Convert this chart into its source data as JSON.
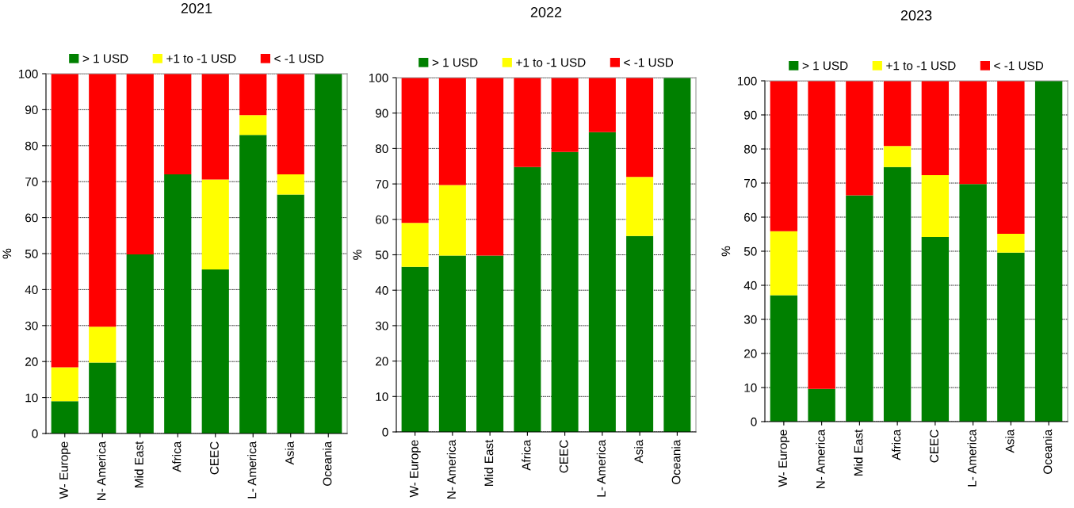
{
  "chart_data": [
    {
      "type": "bar",
      "title": "2021",
      "ylabel": "%",
      "stacked": true,
      "categories": [
        "W- Europe",
        "N- America",
        "Mid East",
        "Africa",
        "CEEC",
        "L- America",
        "Asia",
        "Oceania"
      ],
      "series": [
        {
          "name": "> 1 USD",
          "color": "#008000",
          "values": [
            9,
            19.7,
            49.8,
            72,
            45.6,
            83,
            66.4,
            100
          ]
        },
        {
          "name": "+1 to -1 USD",
          "color": "#ffff00",
          "values": [
            9.4,
            10,
            0,
            0,
            25,
            5.5,
            5.6,
            0
          ]
        },
        {
          "name": "< -1 USD",
          "color": "#ff0000",
          "values": [
            81.6,
            70.3,
            50.2,
            28,
            29.4,
            11.5,
            28,
            0
          ]
        }
      ],
      "ylim": [
        0,
        100
      ],
      "yticks": [
        0,
        10,
        20,
        30,
        40,
        50,
        60,
        70,
        80,
        90,
        100
      ],
      "grid": "y",
      "legend": "top"
    },
    {
      "type": "bar",
      "title": "2022",
      "ylabel": "%",
      "stacked": true,
      "categories": [
        "W- Europe",
        "N- America",
        "Mid East",
        "Africa",
        "CEEC",
        "L- America",
        "Asia",
        "Oceania"
      ],
      "series": [
        {
          "name": "> 1 USD",
          "color": "#008000",
          "values": [
            46.6,
            49.8,
            49.8,
            74.8,
            79,
            84.6,
            55.3,
            100
          ]
        },
        {
          "name": "+1 to -1 USD",
          "color": "#ffff00",
          "values": [
            12.4,
            19.9,
            0,
            0,
            0,
            0,
            16.7,
            0
          ]
        },
        {
          "name": "< -1 USD",
          "color": "#ff0000",
          "values": [
            41,
            30.3,
            50.2,
            25.2,
            21,
            15.4,
            28,
            0
          ]
        }
      ],
      "ylim": [
        0,
        100
      ],
      "yticks": [
        0,
        10,
        20,
        30,
        40,
        50,
        60,
        70,
        80,
        90,
        100
      ],
      "grid": "y",
      "legend": "top"
    },
    {
      "type": "bar",
      "title": "2023",
      "ylabel": "%",
      "stacked": true,
      "categories": [
        "W- Europe",
        "N- America",
        "Mid East",
        "Africa",
        "CEEC",
        "L- America",
        "Asia",
        "Oceania"
      ],
      "series": [
        {
          "name": "> 1 USD",
          "color": "#008000",
          "values": [
            37.1,
            9.6,
            66.4,
            74.7,
            54.2,
            69.7,
            49.6,
            100
          ]
        },
        {
          "name": "+1 to -1 USD",
          "color": "#ffff00",
          "values": [
            18.8,
            0,
            0,
            6.2,
            18.1,
            0,
            5.5,
            0
          ]
        },
        {
          "name": "< -1 USD",
          "color": "#ff0000",
          "values": [
            44.1,
            90.4,
            33.6,
            19.1,
            27.7,
            30.3,
            44.9,
            0
          ]
        }
      ],
      "ylim": [
        0,
        100
      ],
      "yticks": [
        0,
        10,
        20,
        30,
        40,
        50,
        60,
        70,
        80,
        90,
        100
      ],
      "grid": "y",
      "legend": "top"
    }
  ]
}
